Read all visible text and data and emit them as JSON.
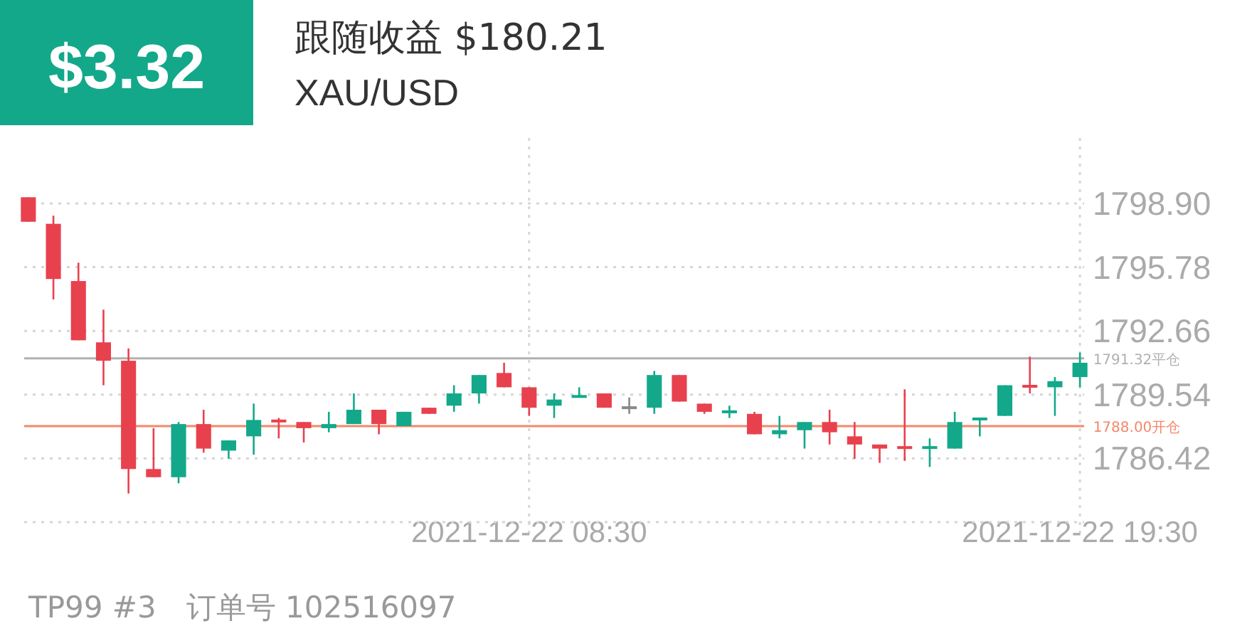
{
  "chart_data": {
    "type": "candlestick",
    "title": "跟随收益 $180.21",
    "subtitle": "XAU/USD",
    "annotations": [
      "$3.32",
      "TP99 #3　订单号 102516097"
    ],
    "x": [
      "2021-12-21T22:30",
      "2021-12-21T23:00",
      "2021-12-21T23:30",
      "2021-12-22T00:00",
      "2021-12-22T00:30",
      "2021-12-22T01:00",
      "2021-12-22T01:30",
      "2021-12-22T02:00",
      "2021-12-22T02:30",
      "2021-12-22T03:00",
      "2021-12-22T03:30",
      "2021-12-22T04:00",
      "2021-12-22T04:30",
      "2021-12-22T05:00",
      "2021-12-22T05:30",
      "2021-12-22T06:00",
      "2021-12-22T06:30",
      "2021-12-22T07:00",
      "2021-12-22T07:30",
      "2021-12-22T08:00",
      "2021-12-22T08:30",
      "2021-12-22T09:00",
      "2021-12-22T09:30",
      "2021-12-22T10:00",
      "2021-12-22T10:30",
      "2021-12-22T11:00",
      "2021-12-22T11:30",
      "2021-12-22T12:00",
      "2021-12-22T12:30",
      "2021-12-22T13:00",
      "2021-12-22T13:30",
      "2021-12-22T14:00",
      "2021-12-22T14:30",
      "2021-12-22T15:00",
      "2021-12-22T15:30",
      "2021-12-22T16:00",
      "2021-12-22T16:30",
      "2021-12-22T17:00",
      "2021-12-22T17:30",
      "2021-12-22T18:00",
      "2021-12-22T18:30",
      "2021-12-22T19:00",
      "2021-12-22T19:30"
    ],
    "ohlc": [
      [
        1799.2,
        1799.2,
        1798.0,
        1798.0
      ],
      [
        1797.9,
        1798.3,
        1794.2,
        1795.2
      ],
      [
        1795.1,
        1796.0,
        1792.2,
        1792.2
      ],
      [
        1792.1,
        1793.7,
        1790.0,
        1791.2
      ],
      [
        1791.2,
        1791.8,
        1784.7,
        1785.9
      ],
      [
        1785.9,
        1787.9,
        1785.5,
        1785.5
      ],
      [
        1785.5,
        1788.2,
        1785.2,
        1788.1
      ],
      [
        1788.1,
        1788.8,
        1786.7,
        1786.9
      ],
      [
        1786.8,
        1787.3,
        1786.4,
        1787.3
      ],
      [
        1787.5,
        1789.1,
        1786.6,
        1788.3
      ],
      [
        1788.3,
        1788.4,
        1787.4,
        1788.2
      ],
      [
        1788.2,
        1788.2,
        1787.2,
        1787.9
      ],
      [
        1787.9,
        1788.7,
        1787.7,
        1788.1
      ],
      [
        1788.1,
        1789.6,
        1788.1,
        1788.8
      ],
      [
        1788.8,
        1788.8,
        1787.6,
        1788.1
      ],
      [
        1788.0,
        1788.7,
        1788.0,
        1788.7
      ],
      [
        1788.9,
        1788.9,
        1788.6,
        1788.6
      ],
      [
        1789.0,
        1790.0,
        1788.7,
        1789.6
      ],
      [
        1789.6,
        1790.5,
        1789.1,
        1790.5
      ],
      [
        1790.6,
        1791.1,
        1789.9,
        1789.9
      ],
      [
        1789.9,
        1789.9,
        1788.5,
        1788.9
      ],
      [
        1789.0,
        1789.6,
        1788.4,
        1789.3
      ],
      [
        1789.4,
        1789.9,
        1789.4,
        1789.5
      ],
      [
        1789.6,
        1789.6,
        1788.9,
        1788.9
      ],
      [
        1788.9,
        1789.4,
        1788.6,
        1788.9
      ],
      [
        1788.9,
        1790.7,
        1788.6,
        1790.5
      ],
      [
        1790.5,
        1790.5,
        1789.2,
        1789.2
      ],
      [
        1789.1,
        1789.1,
        1788.6,
        1788.7
      ],
      [
        1788.68,
        1789.0,
        1788.4,
        1788.72
      ],
      [
        1788.6,
        1788.7,
        1787.6,
        1787.6
      ],
      [
        1787.6,
        1788.5,
        1787.4,
        1787.8
      ],
      [
        1787.8,
        1788.2,
        1786.9,
        1788.2
      ],
      [
        1788.2,
        1788.8,
        1787.1,
        1787.7
      ],
      [
        1787.5,
        1788.2,
        1786.4,
        1787.1
      ],
      [
        1787.1,
        1787.1,
        1786.2,
        1786.9
      ],
      [
        1787.0,
        1789.8,
        1786.3,
        1786.9
      ],
      [
        1786.9,
        1787.4,
        1786.0,
        1787.0
      ],
      [
        1786.9,
        1788.7,
        1786.9,
        1788.2
      ],
      [
        1788.3,
        1788.4,
        1787.5,
        1788.4
      ],
      [
        1788.5,
        1790.0,
        1788.5,
        1790.0
      ],
      [
        1790.0,
        1791.4,
        1789.6,
        1789.9
      ],
      [
        1789.9,
        1790.4,
        1788.5,
        1790.2
      ],
      [
        1790.4,
        1791.6,
        1789.9,
        1791.1
      ]
    ],
    "colors": [
      "#e8414e",
      "#e8414e",
      "#e8414e",
      "#e8414e",
      "#e8414e",
      "#e8414e",
      "#13a88a",
      "#e8414e",
      "#13a88a",
      "#13a88a",
      "#e8414e",
      "#e8414e",
      "#13a88a",
      "#13a88a",
      "#e8414e",
      "#13a88a",
      "#e8414e",
      "#13a88a",
      "#13a88a",
      "#e8414e",
      "#e8414e",
      "#13a88a",
      "#13a88a",
      "#e8414e",
      "#888888",
      "#13a88a",
      "#e8414e",
      "#e8414e",
      "#13a88a",
      "#e8414e",
      "#13a88a",
      "#13a88a",
      "#e8414e",
      "#e8414e",
      "#e8414e",
      "#e8414e",
      "#13a88a",
      "#13a88a",
      "#13a88a",
      "#13a88a",
      "#e8414e",
      "#13a88a",
      "#13a88a"
    ],
    "xlim": [
      "2021-12-21T22:25",
      "2021-12-22T19:35"
    ],
    "xticks": [
      {
        "value": "2021-12-22T08:30",
        "label": "2021-12-22 08:30"
      },
      {
        "value": "2021-12-22T19:30",
        "label": "2021-12-22 19:30"
      }
    ],
    "ylim": [
      1783.3,
      1802.1
    ],
    "yticks": [
      {
        "value": 1786.42,
        "label": "1786.42"
      },
      {
        "value": 1789.54,
        "label": "1789.54"
      },
      {
        "value": 1792.66,
        "label": "1792.66"
      },
      {
        "value": 1795.78,
        "label": "1795.78"
      },
      {
        "value": 1798.9,
        "label": "1798.90"
      }
    ],
    "ref_lines": [
      {
        "axis": "y",
        "value": 1791.32,
        "label": "1791.32平仓",
        "color": "#b0b0b0"
      },
      {
        "axis": "y",
        "value": 1788.0,
        "label": "1788.00开仓",
        "color": "#f4876a"
      }
    ],
    "grid": true
  }
}
